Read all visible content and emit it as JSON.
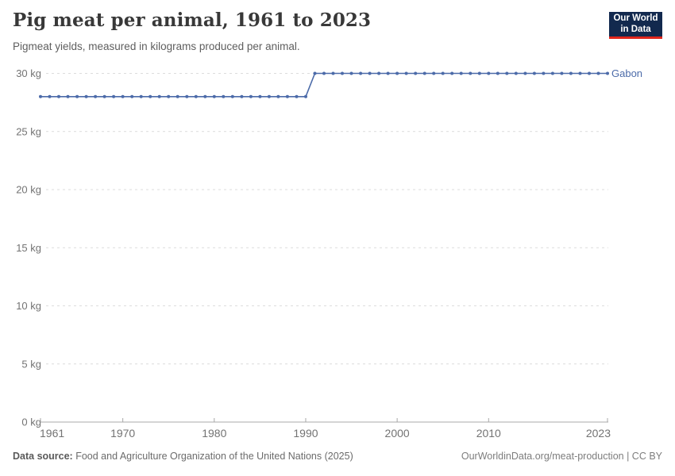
{
  "header": {
    "title": "Pig meat per animal, 1961 to 2023",
    "subtitle": "Pigmeat yields, measured in kilograms produced per animal."
  },
  "logo": {
    "line1": "Our World",
    "line2": "in Data",
    "bg_color": "#12294e",
    "accent_color": "#e0261c"
  },
  "chart_data": {
    "type": "line",
    "title": "Pig meat per animal, 1961 to 2023",
    "subtitle": "Pigmeat yields, measured in kilograms produced per animal.",
    "xlabel": "",
    "ylabel": "",
    "unit": "kg",
    "ylim": [
      0,
      30
    ],
    "yticks": [
      0,
      5,
      10,
      15,
      20,
      25,
      30
    ],
    "ytick_labels": [
      "0 kg",
      "5 kg",
      "10 kg",
      "15 kg",
      "20 kg",
      "25 kg",
      "30 kg"
    ],
    "xticks": [
      1961,
      1970,
      1980,
      1990,
      2000,
      2010,
      2023
    ],
    "grid": "horizontal-dashed",
    "legend": "inline-right-entity-label",
    "x": [
      1961,
      1962,
      1963,
      1964,
      1965,
      1966,
      1967,
      1968,
      1969,
      1970,
      1971,
      1972,
      1973,
      1974,
      1975,
      1976,
      1977,
      1978,
      1979,
      1980,
      1981,
      1982,
      1983,
      1984,
      1985,
      1986,
      1987,
      1988,
      1989,
      1990,
      1991,
      1992,
      1993,
      1994,
      1995,
      1996,
      1997,
      1998,
      1999,
      2000,
      2001,
      2002,
      2003,
      2004,
      2005,
      2006,
      2007,
      2008,
      2009,
      2010,
      2011,
      2012,
      2013,
      2014,
      2015,
      2016,
      2017,
      2018,
      2019,
      2020,
      2021,
      2022,
      2023
    ],
    "series": [
      {
        "name": "Gabon",
        "color": "#4c6ba9",
        "values": [
          28,
          28,
          28,
          28,
          28,
          28,
          28,
          28,
          28,
          28,
          28,
          28,
          28,
          28,
          28,
          28,
          28,
          28,
          28,
          28,
          28,
          28,
          28,
          28,
          28,
          28,
          28,
          28,
          28,
          28,
          30,
          30,
          30,
          30,
          30,
          30,
          30,
          30,
          30,
          30,
          30,
          30,
          30,
          30,
          30,
          30,
          30,
          30,
          30,
          30,
          30,
          30,
          30,
          30,
          30,
          30,
          30,
          30,
          30,
          30,
          30,
          30,
          30
        ]
      }
    ],
    "style": {
      "grid_color": "#dcdcdc",
      "axis_color": "#a8a8a8",
      "tick_label_color": "#737373"
    }
  },
  "footer": {
    "source_label": "Data source:",
    "source_text": "Food and Agriculture Organization of the United Nations (2025)",
    "attribution": "OurWorldinData.org/meat-production | CC BY"
  }
}
